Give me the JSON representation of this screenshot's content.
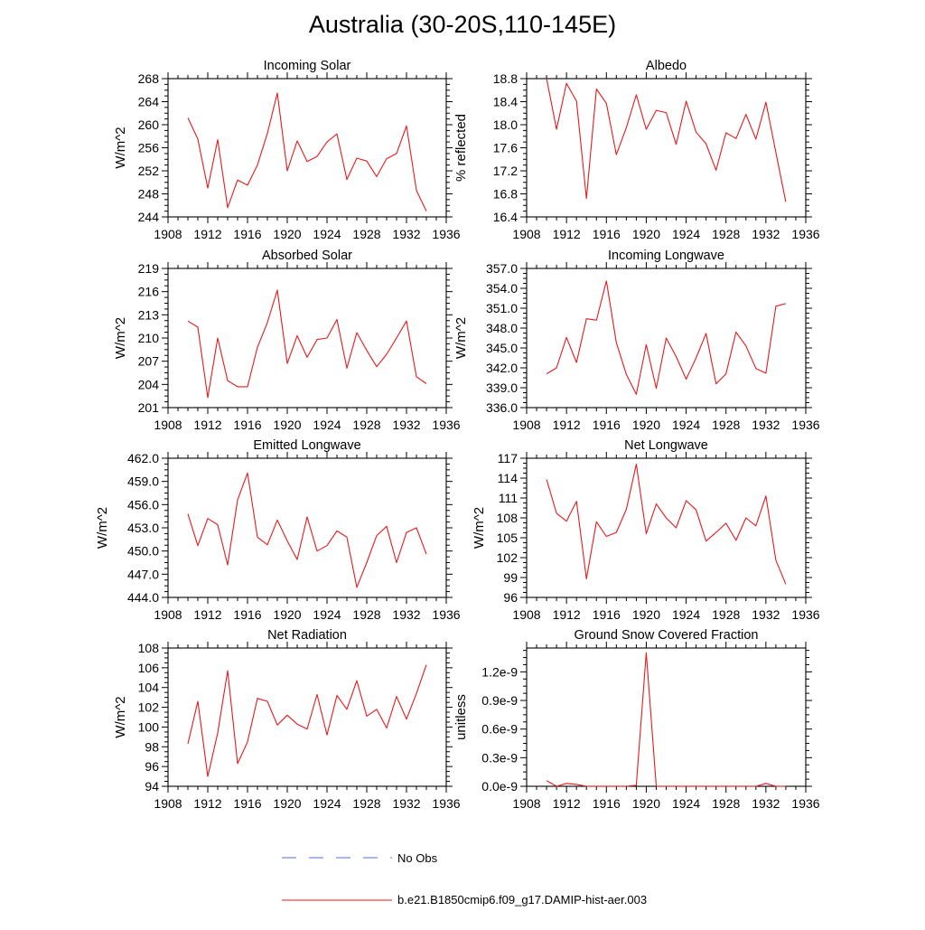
{
  "title": "Australia (30-20S,110-145E)",
  "x_ticks": [
    "1908",
    "1912",
    "1916",
    "1920",
    "1924",
    "1928",
    "1932",
    "1936"
  ],
  "legend": {
    "obs_label": "No Obs",
    "model_label": "b.e21.B1850cmip6.f09_g17.DAMIP-hist-aer.003",
    "obs_color": "#5a6ad0",
    "model_color": "#e8191c"
  },
  "chart_data": [
    {
      "type": "line",
      "title": "Incoming Solar",
      "ylabel": "W/m^2",
      "xlim": [
        1908,
        1936
      ],
      "ylim": [
        244,
        268
      ],
      "y_ticks": [
        "244",
        "248",
        "252",
        "256",
        "260",
        "264",
        "268"
      ],
      "series": [
        {
          "name": "b.e21.B1850cmip6.f09_g17.DAMIP-hist-aer.003",
          "x": [
            1910,
            1911,
            1912,
            1913,
            1914,
            1915,
            1916,
            1917,
            1918,
            1919,
            1920,
            1921,
            1922,
            1923,
            1924,
            1925,
            1926,
            1927,
            1928,
            1929,
            1930,
            1931,
            1932,
            1933,
            1934
          ],
          "values": [
            261.2,
            257.5,
            249.0,
            257.4,
            245.6,
            250.4,
            249.5,
            253.0,
            258.5,
            265.5,
            252.0,
            257.2,
            253.6,
            254.5,
            257.0,
            258.4,
            250.5,
            254.2,
            253.7,
            251.0,
            254.1,
            255.0,
            259.8,
            248.6,
            245.0
          ]
        }
      ]
    },
    {
      "type": "line",
      "title": "Albedo",
      "ylabel": "% reflected",
      "xlim": [
        1908,
        1936
      ],
      "ylim": [
        16.4,
        18.8
      ],
      "y_ticks": [
        "16.4",
        "16.8",
        "17.2",
        "17.6",
        "18.0",
        "18.4",
        "18.8"
      ],
      "series": [
        {
          "name": "b.e21.B1850cmip6.f09_g17.DAMIP-hist-aer.003",
          "x": [
            1910,
            1911,
            1912,
            1913,
            1914,
            1915,
            1916,
            1917,
            1918,
            1919,
            1920,
            1921,
            1922,
            1923,
            1924,
            1925,
            1926,
            1927,
            1928,
            1929,
            1930,
            1931,
            1932,
            1933,
            1934
          ],
          "values": [
            18.8,
            17.92,
            18.72,
            18.41,
            16.72,
            18.62,
            18.37,
            17.48,
            17.95,
            18.52,
            17.92,
            18.25,
            18.21,
            17.66,
            18.41,
            17.87,
            17.67,
            17.21,
            17.86,
            17.76,
            18.18,
            17.75,
            18.39,
            17.52,
            16.66
          ]
        }
      ]
    },
    {
      "type": "line",
      "title": "Absorbed Solar",
      "ylabel": "W/m^2",
      "xlim": [
        1908,
        1936
      ],
      "ylim": [
        201,
        219
      ],
      "y_ticks": [
        "201",
        "204",
        "207",
        "210",
        "213",
        "216",
        "219"
      ],
      "series": [
        {
          "name": "b.e21.B1850cmip6.f09_g17.DAMIP-hist-aer.003",
          "x": [
            1910,
            1911,
            1912,
            1913,
            1914,
            1915,
            1916,
            1917,
            1918,
            1919,
            1920,
            1921,
            1922,
            1923,
            1924,
            1925,
            1926,
            1927,
            1928,
            1929,
            1930,
            1931,
            1932,
            1933,
            1934
          ],
          "values": [
            212.2,
            211.4,
            202.3,
            210.0,
            204.5,
            203.7,
            203.7,
            208.8,
            212.0,
            216.2,
            206.7,
            210.3,
            207.5,
            209.8,
            210.0,
            212.4,
            206.1,
            210.7,
            208.4,
            206.3,
            207.9,
            210.0,
            212.2,
            205.0,
            204.1
          ]
        }
      ]
    },
    {
      "type": "line",
      "title": "Incoming Longwave",
      "ylabel": "W/m^2",
      "xlim": [
        1908,
        1936
      ],
      "ylim": [
        336.0,
        357.0
      ],
      "y_ticks": [
        "336.0",
        "339.0",
        "342.0",
        "345.0",
        "348.0",
        "351.0",
        "354.0",
        "357.0"
      ],
      "series": [
        {
          "name": "b.e21.B1850cmip6.f09_g17.DAMIP-hist-aer.003",
          "x": [
            1910,
            1911,
            1912,
            1913,
            1914,
            1915,
            1916,
            1917,
            1918,
            1919,
            1920,
            1921,
            1922,
            1923,
            1924,
            1925,
            1926,
            1927,
            1928,
            1929,
            1930,
            1931,
            1932,
            1933,
            1934
          ],
          "values": [
            341.1,
            342.0,
            346.6,
            342.8,
            349.4,
            349.2,
            355.1,
            345.8,
            341.0,
            338.0,
            345.5,
            338.9,
            346.5,
            343.7,
            340.3,
            343.5,
            347.2,
            339.6,
            341.1,
            347.4,
            345.3,
            341.9,
            341.2,
            351.3,
            351.7
          ]
        }
      ]
    },
    {
      "type": "line",
      "title": "Emitted Longwave",
      "ylabel": "W/m^2",
      "xlim": [
        1908,
        1936
      ],
      "ylim": [
        444.0,
        462.0
      ],
      "y_ticks": [
        "444.0",
        "447.0",
        "450.0",
        "453.0",
        "456.0",
        "459.0",
        "462.0"
      ],
      "series": [
        {
          "name": "b.e21.B1850cmip6.f09_g17.DAMIP-hist-aer.003",
          "x": [
            1910,
            1911,
            1912,
            1913,
            1914,
            1915,
            1916,
            1917,
            1918,
            1919,
            1920,
            1921,
            1922,
            1923,
            1924,
            1925,
            1926,
            1927,
            1928,
            1929,
            1930,
            1931,
            1932,
            1933,
            1934
          ],
          "values": [
            454.8,
            450.7,
            454.2,
            453.4,
            448.2,
            456.6,
            460.1,
            451.8,
            450.8,
            454.0,
            451.3,
            448.9,
            454.4,
            450.0,
            450.7,
            452.6,
            451.8,
            445.3,
            448.5,
            452.0,
            453.2,
            448.5,
            452.4,
            453.0,
            449.6
          ]
        }
      ]
    },
    {
      "type": "line",
      "title": "Net Longwave",
      "ylabel": "W/m^2",
      "xlim": [
        1908,
        1936
      ],
      "ylim": [
        96,
        117
      ],
      "y_ticks": [
        "96",
        "99",
        "102",
        "105",
        "108",
        "111",
        "114",
        "117"
      ],
      "series": [
        {
          "name": "b.e21.B1850cmip6.f09_g17.DAMIP-hist-aer.003",
          "x": [
            1910,
            1911,
            1912,
            1913,
            1914,
            1915,
            1916,
            1917,
            1918,
            1919,
            1920,
            1921,
            1922,
            1923,
            1924,
            1925,
            1926,
            1927,
            1928,
            1929,
            1930,
            1931,
            1932,
            1933,
            1934
          ],
          "values": [
            113.8,
            108.7,
            107.5,
            110.5,
            98.8,
            107.4,
            105.2,
            105.8,
            109.3,
            116.1,
            105.6,
            110.1,
            108.0,
            106.5,
            110.6,
            109.2,
            104.5,
            105.8,
            107.2,
            104.6,
            108.0,
            106.8,
            111.3,
            101.6,
            98.0
          ]
        }
      ]
    },
    {
      "type": "line",
      "title": "Net Radiation",
      "ylabel": "W/m^2",
      "xlim": [
        1908,
        1936
      ],
      "ylim": [
        94,
        108
      ],
      "y_ticks": [
        "94",
        "96",
        "98",
        "100",
        "102",
        "104",
        "106",
        "108"
      ],
      "series": [
        {
          "name": "b.e21.B1850cmip6.f09_g17.DAMIP-hist-aer.003",
          "x": [
            1910,
            1911,
            1912,
            1913,
            1914,
            1915,
            1916,
            1917,
            1918,
            1919,
            1920,
            1921,
            1922,
            1923,
            1924,
            1925,
            1926,
            1927,
            1928,
            1929,
            1930,
            1931,
            1932,
            1933,
            1934
          ],
          "values": [
            98.3,
            102.6,
            95.0,
            99.4,
            105.7,
            96.3,
            98.5,
            102.9,
            102.6,
            100.2,
            101.2,
            100.3,
            99.8,
            103.3,
            99.2,
            103.2,
            101.8,
            104.7,
            101.1,
            101.8,
            99.9,
            103.1,
            100.8,
            103.4,
            106.3
          ]
        }
      ]
    },
    {
      "type": "line",
      "title": "Ground Snow Covered Fraction",
      "ylabel": "unitless",
      "xlim": [
        1908,
        1936
      ],
      "ylim": [
        0,
        1.45e-09
      ],
      "y_ticks": [
        "0.0e-9",
        "0.3e-9",
        "0.6e-9",
        "0.9e-9",
        "1.2e-9"
      ],
      "y_tick_values": [
        0,
        3e-10,
        6e-10,
        9e-10,
        1.2e-09
      ],
      "series": [
        {
          "name": "b.e21.B1850cmip6.f09_g17.DAMIP-hist-aer.003",
          "x": [
            1910,
            1911,
            1912,
            1913,
            1914,
            1915,
            1916,
            1917,
            1918,
            1919,
            1920,
            1921,
            1922,
            1923,
            1924,
            1925,
            1926,
            1927,
            1928,
            1929,
            1930,
            1931,
            1932,
            1933,
            1934
          ],
          "values": [
            6e-11,
            0.0,
            3e-11,
            2e-11,
            0.0,
            0.0,
            0.0,
            0.0,
            0.0,
            1e-11,
            1.4e-09,
            0.0,
            0.0,
            0.0,
            0.0,
            0.0,
            0.0,
            0.0,
            0.0,
            0.0,
            0.0,
            0.0,
            3e-11,
            0.0,
            0.0
          ]
        }
      ]
    }
  ]
}
